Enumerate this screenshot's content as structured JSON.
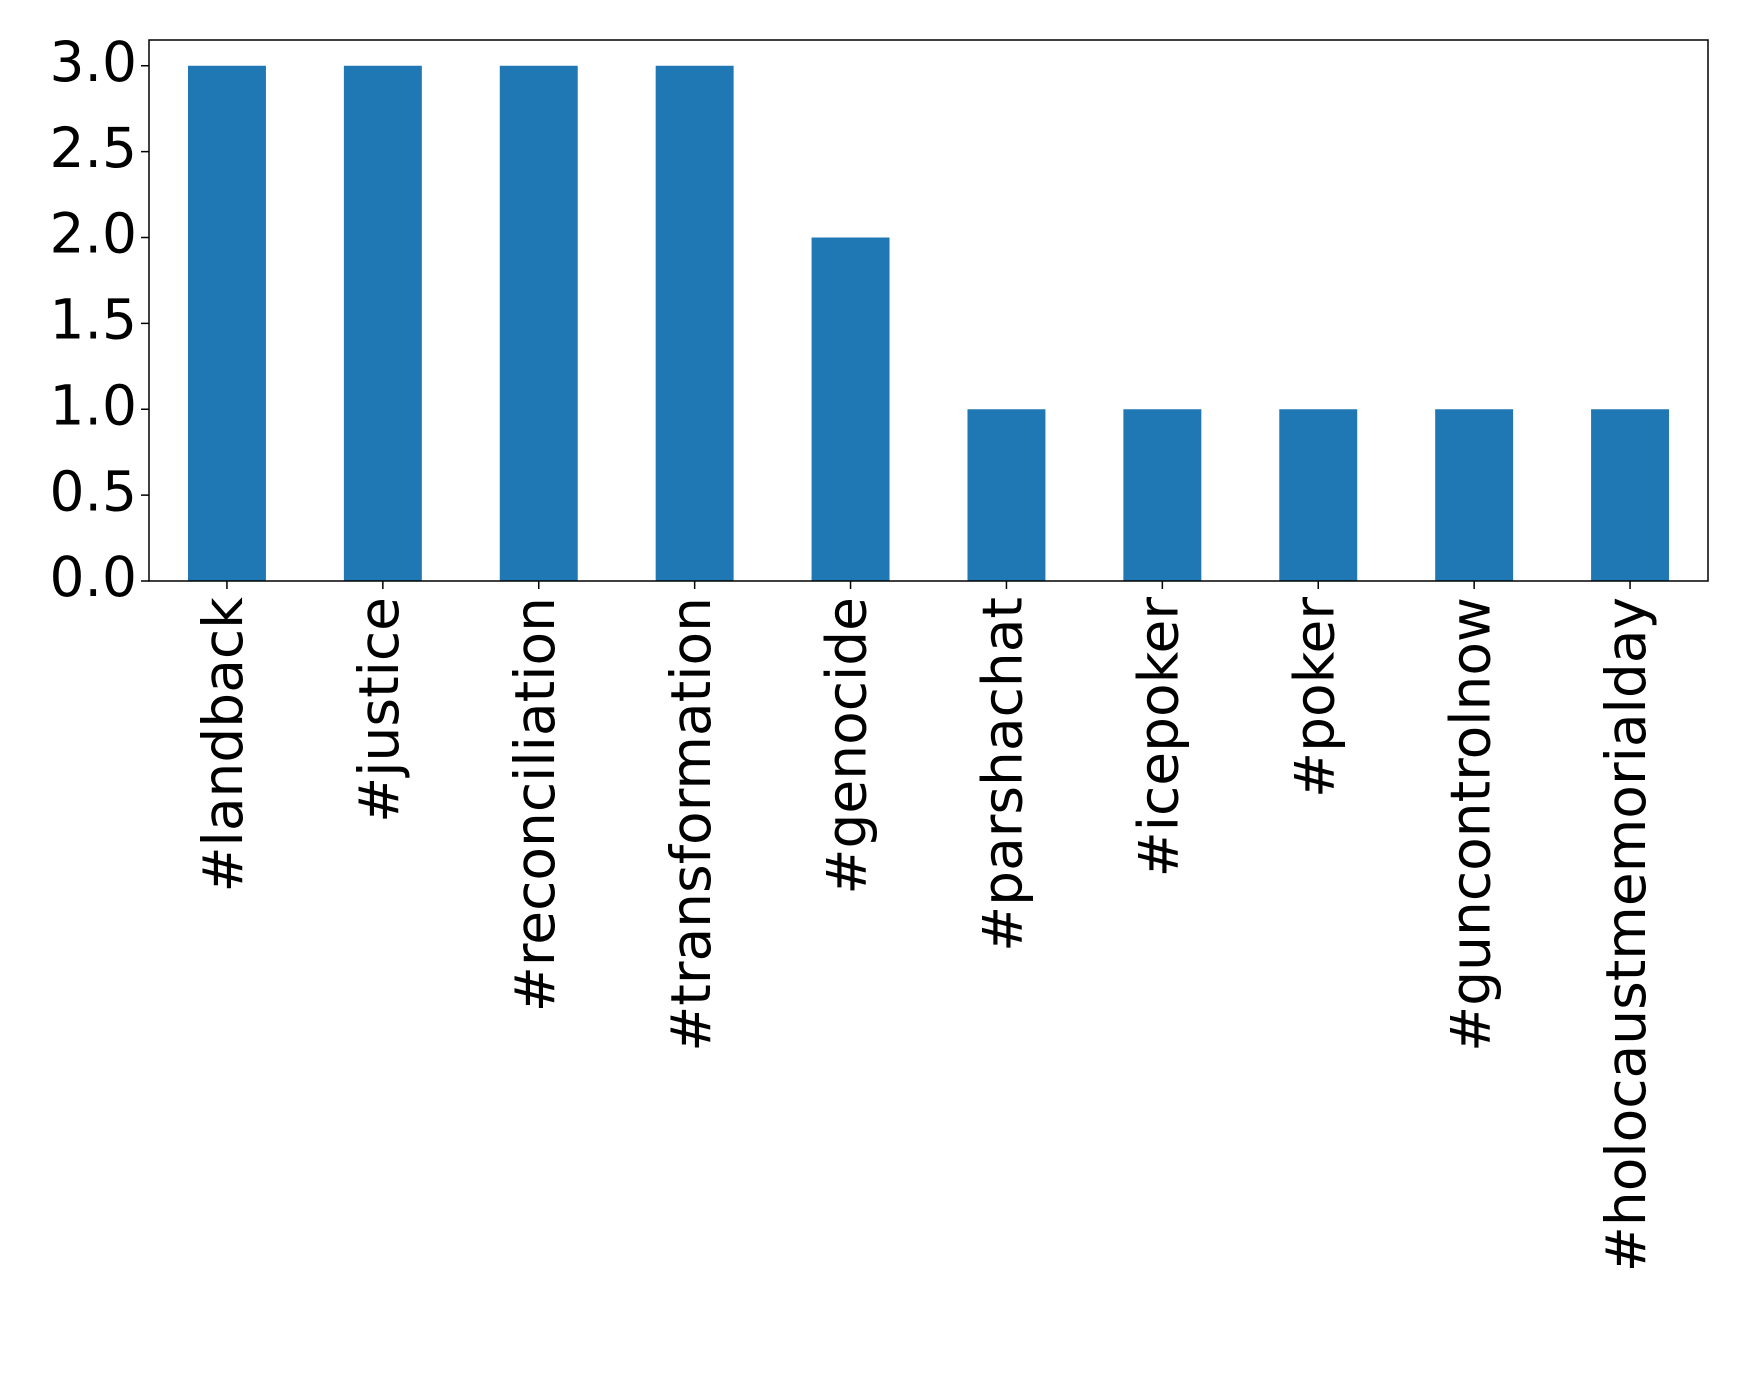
{
  "chart_data": {
    "type": "bar",
    "categories": [
      "#landback",
      "#justice",
      "#reconciliation",
      "#transformation",
      "#genocide",
      "#parshachat",
      "#icepoker",
      "#poker",
      "#guncontrolnow",
      "#holocaustmemorialday"
    ],
    "values": [
      3,
      3,
      3,
      3,
      2,
      1,
      1,
      1,
      1,
      1
    ],
    "color": "#1f77b4",
    "ylim": [
      0,
      3.15
    ],
    "yticks": [
      {
        "value": 0,
        "label": "0.0"
      },
      {
        "value": 0.5,
        "label": "0.5"
      },
      {
        "value": 1,
        "label": "1.0"
      },
      {
        "value": 1.5,
        "label": "1.5"
      },
      {
        "value": 2,
        "label": "2.0"
      },
      {
        "value": 2.5,
        "label": "2.5"
      },
      {
        "value": 3,
        "label": "3.0"
      }
    ],
    "grid": false
  }
}
